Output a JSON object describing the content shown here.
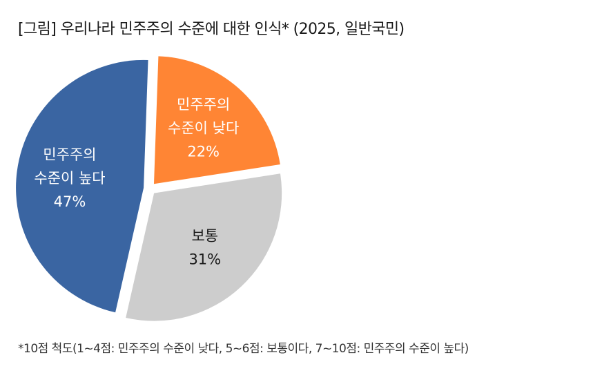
{
  "title": "[그림] 우리나라 민주주의 수준에 대한 인식* (2025, 일반국민)",
  "footnote": "*10점 척도(1~4점: 민주주의 수준이 낮다, 5~6점: 보통이다, 7~10점: 민주주의 수준이 높다)",
  "chart_data": {
    "type": "pie",
    "unit": "%",
    "slices": [
      {
        "label_lines": [
          "민주주의",
          "수준이 낮다"
        ],
        "value": 22,
        "color": "#FF8534",
        "text_color": "#ffffff"
      },
      {
        "label_lines": [
          "보통"
        ],
        "value": 31,
        "color": "#CDCDCD",
        "text_color": "#1a1a1a"
      },
      {
        "label_lines": [
          "민주주의",
          "수준이 높다"
        ],
        "value": 47,
        "color": "#3A65A2",
        "text_color": "#ffffff"
      }
    ]
  }
}
